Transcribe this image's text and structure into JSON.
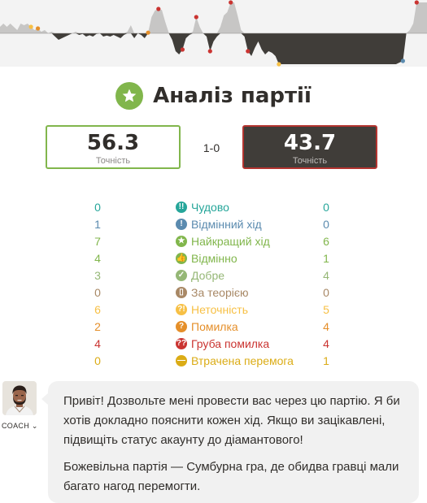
{
  "header": {
    "title": "Аналіз партії",
    "icon": "star-icon"
  },
  "scores": {
    "white": {
      "value": "56.3",
      "label": "Точність",
      "border_color": "#81b64c"
    },
    "result": "1-0",
    "black": {
      "value": "43.7",
      "label": "Точність",
      "border_color": "#b33430"
    }
  },
  "move_stats": [
    {
      "label": "Чудово",
      "white": "0",
      "black": "0",
      "color": "#26a69a",
      "icon": "brilliant-icon",
      "glyph": "!!"
    },
    {
      "label": "Відмінний хід",
      "white": "1",
      "black": "0",
      "color": "#5b8baf",
      "icon": "great-move-icon",
      "glyph": "!"
    },
    {
      "label": "Найкращий хід",
      "white": "7",
      "black": "6",
      "color": "#81b64c",
      "icon": "best-move-icon",
      "glyph": "★"
    },
    {
      "label": "Відмінно",
      "white": "4",
      "black": "1",
      "color": "#81b64c",
      "icon": "excellent-icon",
      "glyph": "👍"
    },
    {
      "label": "Добре",
      "white": "3",
      "black": "4",
      "color": "#95b776",
      "icon": "good-icon",
      "glyph": "✓"
    },
    {
      "label": "За теорією",
      "white": "0",
      "black": "0",
      "color": "#a88865",
      "icon": "book-icon",
      "glyph": "▯"
    },
    {
      "label": "Неточність",
      "white": "6",
      "black": "5",
      "color": "#f7c045",
      "icon": "inaccuracy-icon",
      "glyph": "?!"
    },
    {
      "label": "Помилка",
      "white": "2",
      "black": "4",
      "color": "#e58f2a",
      "icon": "mistake-icon",
      "glyph": "?"
    },
    {
      "label": "Груба помилка",
      "white": "4",
      "black": "4",
      "color": "#ca3431",
      "icon": "blunder-icon",
      "glyph": "??"
    },
    {
      "label": "Втрачена перемога",
      "white": "0",
      "black": "1",
      "color": "#dbac16",
      "icon": "missed-win-icon",
      "glyph": "—"
    }
  ],
  "coach": {
    "label": "COACH",
    "icon": "chevron-down-icon",
    "messages": [
      "Привіт! Дозвольте мені провести вас через цю партію. Я би хотів докладно пояснити кожен хід. Якщо ви зацікавлені, підвищіть статус акаунту до діамантового!",
      "Божевільна партія — Сумбурна гра, де обидва гравці мали багато нагод перемогти."
    ]
  },
  "graph": {
    "evaluation": [
      0.2,
      0.3,
      0.2,
      0.3,
      0.2,
      0.1,
      0.3,
      0.25,
      0.3,
      0.2,
      0.1,
      0.15,
      0.05,
      0.1,
      0.0,
      0.05,
      -0.1,
      -0.2,
      -0.15,
      -0.1,
      -0.05,
      0.0,
      0.05,
      -0.05,
      -0.02,
      -0.1,
      -0.06,
      -0.1,
      -0.02,
      0.0,
      -0.1,
      -0.07,
      -0.1,
      -0.05,
      -0.1,
      -0.15,
      -0.05,
      0.05,
      0.25,
      -0.15,
      0.0,
      -0.05,
      -0.15,
      0.02,
      0.5,
      0.7,
      0.75,
      0.72,
      0.35,
      0.02,
      -0.2,
      -0.55,
      -0.65,
      -0.5,
      -0.15,
      -0.05,
      0.05,
      0.5,
      0.2,
      0.0,
      -0.1,
      -0.55,
      -0.25,
      -0.1,
      0.2,
      0.55,
      0.65,
      0.95,
      0.95,
      0.55,
      0.1,
      -0.1,
      -0.55,
      -0.7,
      -0.45,
      -0.25,
      -0.5,
      -0.65,
      -0.55,
      -0.6,
      -0.7,
      -0.95,
      -0.95,
      -0.95,
      -0.95,
      -0.95,
      -0.95,
      -0.95,
      -0.95,
      -0.95,
      -0.95,
      -0.95,
      -0.95,
      -0.95,
      -0.95,
      -0.95,
      -0.95,
      -0.95,
      -0.95,
      -0.95,
      -0.95,
      -0.95,
      -0.95,
      -0.95,
      -0.95,
      -0.95,
      -0.95,
      -0.95,
      -0.95,
      -0.95,
      -0.95,
      -0.95,
      -0.95,
      -0.95,
      -0.95,
      -0.95,
      -0.9,
      -0.85,
      0.0,
      0.1,
      0.3,
      0.95,
      0.95,
      0.95,
      0.95
    ],
    "markers": [
      {
        "index": 9,
        "kind": "inaccuracy",
        "color": "#f7c045"
      },
      {
        "index": 11,
        "kind": "mistake",
        "color": "#e58f2a"
      },
      {
        "index": 43,
        "kind": "mistake",
        "color": "#e58f2a"
      },
      {
        "index": 46,
        "kind": "blunder",
        "color": "#ca3431"
      },
      {
        "index": 53,
        "kind": "blunder",
        "color": "#ca3431"
      },
      {
        "index": 57,
        "kind": "blunder",
        "color": "#ca3431"
      },
      {
        "index": 61,
        "kind": "blunder",
        "color": "#ca3431"
      },
      {
        "index": 67,
        "kind": "blunder",
        "color": "#ca3431"
      },
      {
        "index": 72,
        "kind": "blunder",
        "color": "#ca3431"
      },
      {
        "index": 81,
        "kind": "inaccuracy",
        "color": "#f7c045"
      },
      {
        "index": 117,
        "kind": "great",
        "color": "#5b8baf"
      },
      {
        "index": 121,
        "kind": "blunder",
        "color": "#ca3431"
      }
    ]
  }
}
